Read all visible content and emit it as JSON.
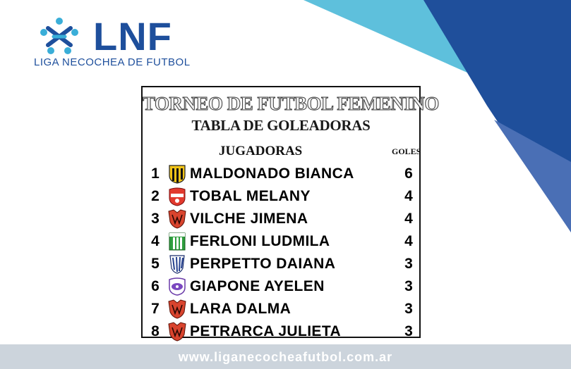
{
  "brand": {
    "acronym": "LNF",
    "full_name": "LIGA NECOCHEA DE FUTBOL",
    "primary_color": "#1e4f9c",
    "accent_color": "#3aaed8",
    "logo_icon": "stylized-figures-logo-icon"
  },
  "board": {
    "title": "TORNEO DE FUTBOL FEMENINO",
    "subtitle": "TABLA DE GOLEADORAS",
    "col_players": "JUGADORAS",
    "col_goals": "GOLES",
    "rows": [
      {
        "pos": "1",
        "name": "MALDONADO BIANCA",
        "goals": "6",
        "crest": "yellow-black-striped-crest-icon"
      },
      {
        "pos": "2",
        "name": "TOBAL MELANY",
        "goals": "4",
        "crest": "red-white-crest-icon"
      },
      {
        "pos": "3",
        "name": "VILCHE JIMENA",
        "goals": "4",
        "crest": "red-shield-crest-icon"
      },
      {
        "pos": "4",
        "name": "FERLONI LUDMILA",
        "goals": "4",
        "crest": "green-white-striped-crest-icon"
      },
      {
        "pos": "5",
        "name": "PERPETTO DAIANA",
        "goals": "3",
        "crest": "blue-white-striped-crest-icon"
      },
      {
        "pos": "6",
        "name": "GIAPONE AYELEN",
        "goals": "3",
        "crest": "purple-white-crest-icon"
      },
      {
        "pos": "7",
        "name": "LARA DALMA",
        "goals": "3",
        "crest": "red-shield-crest-icon"
      },
      {
        "pos": "8",
        "name": "PETRARCA JULIETA",
        "goals": "3",
        "crest": "red-shield-crest-icon"
      }
    ]
  },
  "footer": {
    "url": "www.liganecocheafutbol.com.ar"
  }
}
